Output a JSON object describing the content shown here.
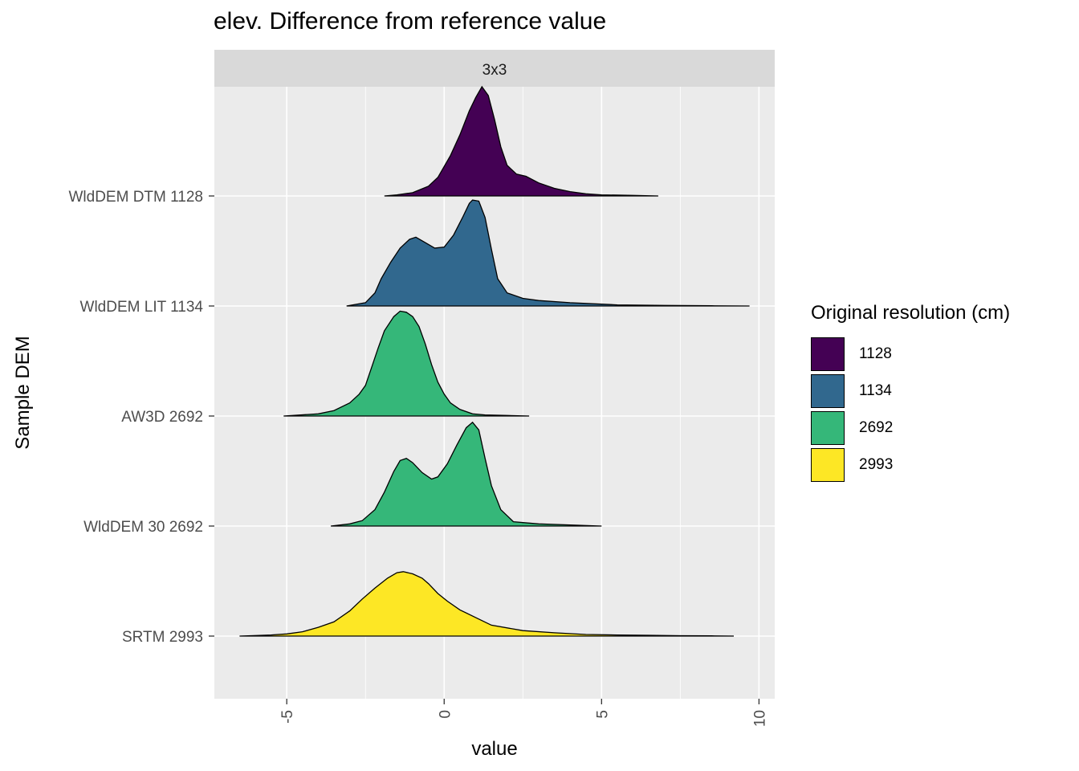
{
  "title": "elev. Difference from reference value",
  "chart_data": {
    "type": "ridgeline",
    "facet": "3x3",
    "xlabel": "value",
    "ylabel": "Sample DEM",
    "xlim": [
      -7.3,
      10.5
    ],
    "xticks": [
      -5,
      0,
      5,
      10
    ],
    "grid": true,
    "legend_position": "right",
    "legend_title": "Original resolution (cm)",
    "legend": [
      {
        "label": "1128",
        "color": "#440154"
      },
      {
        "label": "1134",
        "color": "#31688E"
      },
      {
        "label": "2692",
        "color": "#35B779"
      },
      {
        "label": "2993",
        "color": "#FDE725"
      }
    ],
    "series": [
      {
        "name": "WldDEM DTM 1128",
        "group": "1128",
        "x": [
          -1.9,
          -1.5,
          -1.0,
          -0.5,
          -0.2,
          0.2,
          0.5,
          0.8,
          1.0,
          1.2,
          1.4,
          1.6,
          1.8,
          2.0,
          2.3,
          2.6,
          3.0,
          3.5,
          4.0,
          4.5,
          5.0,
          6.0,
          6.8
        ],
        "y": [
          0.0,
          0.01,
          0.03,
          0.09,
          0.17,
          0.37,
          0.56,
          0.78,
          0.9,
          1.0,
          0.92,
          0.7,
          0.45,
          0.28,
          0.2,
          0.18,
          0.12,
          0.07,
          0.04,
          0.02,
          0.01,
          0.005,
          0.0
        ]
      },
      {
        "name": "WldDEM LIT 1134",
        "group": "1134",
        "x": [
          -3.1,
          -2.5,
          -2.2,
          -2.0,
          -1.7,
          -1.4,
          -1.1,
          -0.9,
          -0.6,
          -0.3,
          0.0,
          0.3,
          0.6,
          0.8,
          0.9,
          1.1,
          1.3,
          1.5,
          1.7,
          2.0,
          2.5,
          3.0,
          4.0,
          5.5,
          7.0,
          8.5,
          9.7
        ],
        "y": [
          0.0,
          0.03,
          0.12,
          0.25,
          0.4,
          0.53,
          0.61,
          0.63,
          0.58,
          0.53,
          0.54,
          0.65,
          0.82,
          0.94,
          0.97,
          0.96,
          0.81,
          0.52,
          0.25,
          0.12,
          0.07,
          0.05,
          0.03,
          0.01,
          0.005,
          0.002,
          0.0
        ]
      },
      {
        "name": "AW3D 2692",
        "group": "2692",
        "x": [
          -5.1,
          -4.0,
          -3.5,
          -3.0,
          -2.7,
          -2.5,
          -2.3,
          -2.1,
          -1.9,
          -1.6,
          -1.4,
          -1.2,
          -1.0,
          -0.8,
          -0.6,
          -0.4,
          -0.2,
          0.0,
          0.2,
          0.5,
          0.9,
          1.3,
          2.0,
          2.7
        ],
        "y": [
          0.0,
          0.02,
          0.05,
          0.12,
          0.2,
          0.28,
          0.45,
          0.62,
          0.78,
          0.91,
          0.96,
          0.95,
          0.91,
          0.82,
          0.66,
          0.47,
          0.31,
          0.2,
          0.12,
          0.06,
          0.02,
          0.01,
          0.005,
          0.0
        ]
      },
      {
        "name": "WldDEM 30 2692",
        "group": "2692",
        "x": [
          -3.6,
          -3.0,
          -2.6,
          -2.2,
          -1.9,
          -1.6,
          -1.4,
          -1.2,
          -1.0,
          -0.7,
          -0.4,
          -0.2,
          0.1,
          0.4,
          0.7,
          0.9,
          1.1,
          1.3,
          1.5,
          1.8,
          2.2,
          3.0,
          4.0,
          5.0
        ],
        "y": [
          0.0,
          0.02,
          0.05,
          0.15,
          0.31,
          0.5,
          0.6,
          0.62,
          0.58,
          0.49,
          0.43,
          0.45,
          0.57,
          0.74,
          0.9,
          0.95,
          0.88,
          0.62,
          0.37,
          0.15,
          0.04,
          0.02,
          0.01,
          0.0
        ]
      },
      {
        "name": "SRTM 2993",
        "group": "2993",
        "x": [
          -6.5,
          -5.5,
          -5.0,
          -4.5,
          -4.0,
          -3.5,
          -3.0,
          -2.6,
          -2.2,
          -1.8,
          -1.5,
          -1.3,
          -1.0,
          -0.7,
          -0.5,
          -0.2,
          0.1,
          0.5,
          1.0,
          1.5,
          2.5,
          3.5,
          4.5,
          5.5,
          6.5,
          7.5,
          8.5,
          9.2
        ],
        "y": [
          0.0,
          0.01,
          0.02,
          0.04,
          0.08,
          0.13,
          0.23,
          0.34,
          0.44,
          0.53,
          0.58,
          0.59,
          0.57,
          0.53,
          0.48,
          0.39,
          0.32,
          0.24,
          0.17,
          0.1,
          0.05,
          0.03,
          0.015,
          0.01,
          0.007,
          0.004,
          0.002,
          0.0
        ]
      }
    ]
  }
}
